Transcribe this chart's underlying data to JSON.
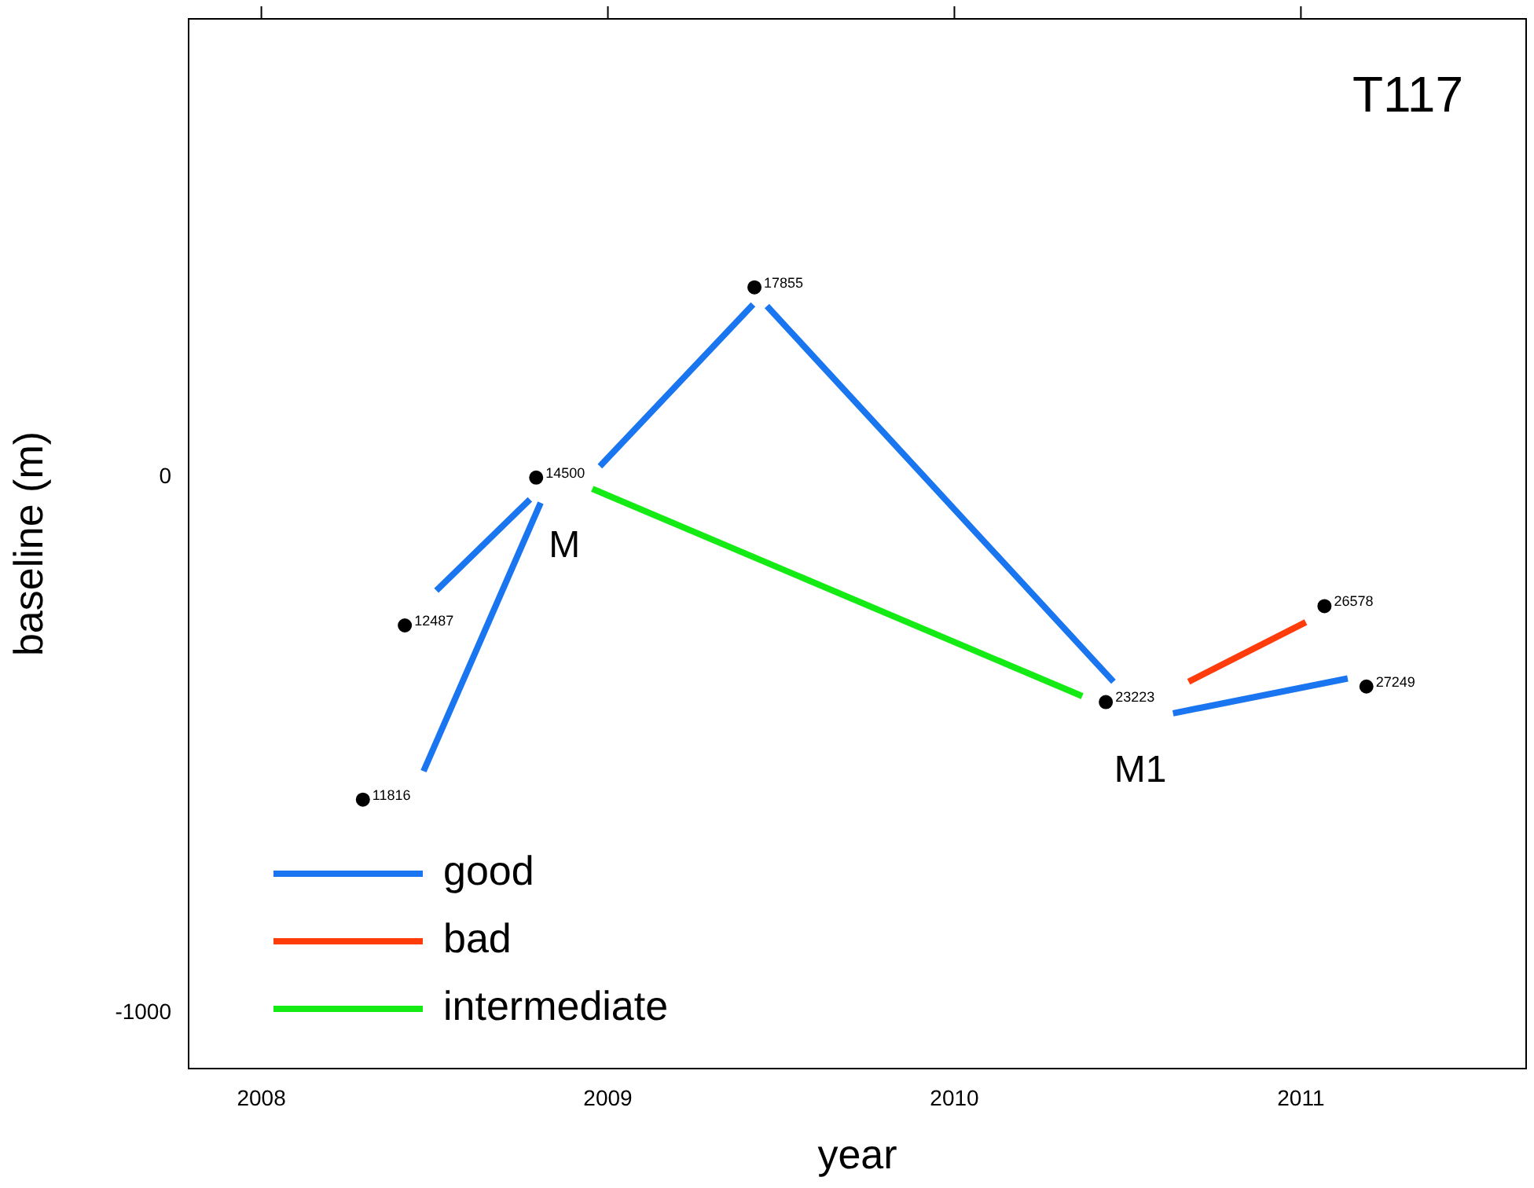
{
  "chart_data": {
    "type": "line",
    "title": "T117",
    "xlabel": "year",
    "ylabel": "baseline (m)",
    "xlim": [
      2007.79,
      2011.65
    ],
    "ylim": [
      -1103,
      856
    ],
    "xticks": [
      2008,
      2009,
      2010,
      2011
    ],
    "yticks": [
      0,
      -1000
    ],
    "grid": false,
    "legend": "bottom left",
    "line_style": "solid",
    "series": [
      {
        "name": "good",
        "color": "#1a75f0",
        "x": [
          2008.505,
          2008.775,
          2008.6,
          2008.468,
          2008.806,
          2008.9,
          2008.977,
          2009.419,
          2009.44,
          2009.459,
          2010.459,
          2010.5,
          2010.631,
          2011.135
        ],
        "values": [
          -211,
          -41,
          null,
          -548,
          -47,
          null,
          21,
          323,
          null,
          320,
          -381,
          null,
          -440,
          -375
        ]
      },
      {
        "name": "bad",
        "color": "#ff3c0a",
        "x": [
          2010.676,
          2011.014
        ],
        "values": [
          -381,
          -270
        ]
      },
      {
        "name": "intermediate",
        "color": "#14eb14",
        "x": [
          2008.955,
          2010.369
        ],
        "values": [
          -21,
          -408
        ]
      },
      {
        "type": "scatter",
        "color": "#000000",
        "marker": "circle",
        "x": [
          2008.293,
          2008.414,
          2008.793,
          2009.423,
          2010.437,
          2011.068,
          2011.189
        ],
        "values": [
          -601,
          -276,
          0,
          355,
          -419,
          -240,
          -390
        ]
      }
    ],
    "annotations": [
      {
        "text": "11816",
        "x": 2008.293,
        "y": -601
      },
      {
        "text": "12487",
        "x": 2008.414,
        "y": -276
      },
      {
        "text": "14500",
        "x": 2008.793,
        "y": 0
      },
      {
        "text": "17855",
        "x": 2009.423,
        "y": 355
      },
      {
        "text": "23223",
        "x": 2010.437,
        "y": -419
      },
      {
        "text": "26578",
        "x": 2011.068,
        "y": -240
      },
      {
        "text": "27249",
        "x": 2011.189,
        "y": -390
      },
      {
        "text": "M",
        "x": 2008.793,
        "y": 0
      },
      {
        "text": "M1",
        "x": 2010.437,
        "y": -419
      }
    ]
  }
}
